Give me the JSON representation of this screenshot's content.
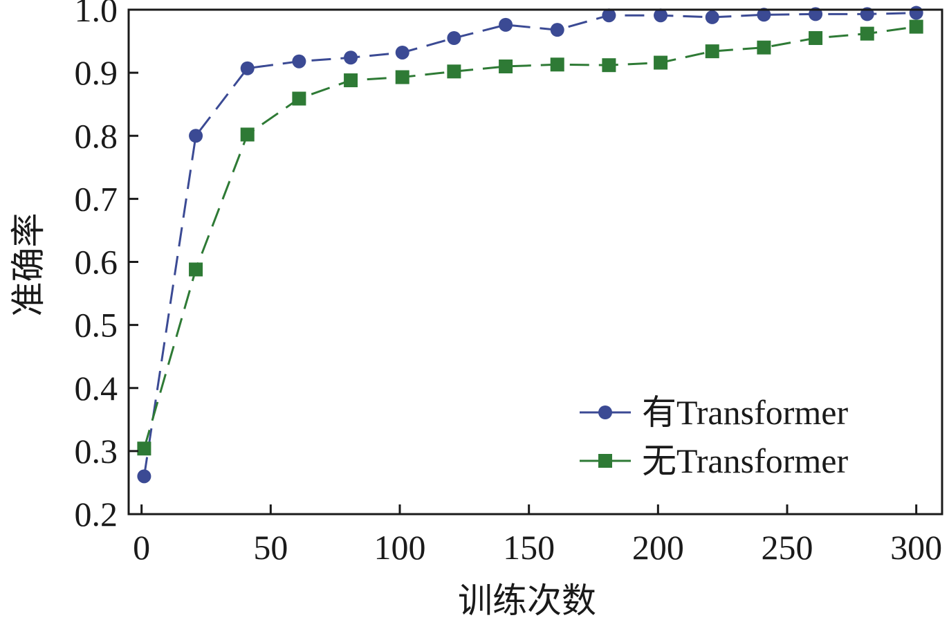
{
  "chart_data": {
    "type": "line",
    "title": "",
    "xlabel": "训练次数",
    "ylabel": "准确率",
    "xlim": [
      -5,
      310
    ],
    "ylim": [
      0.2,
      1.0
    ],
    "xticks": [
      0,
      50,
      100,
      150,
      200,
      250,
      300
    ],
    "yticks": [
      0.2,
      0.3,
      0.4,
      0.5,
      0.6,
      0.7,
      0.8,
      0.9,
      1.0
    ],
    "xtick_labels": [
      "0",
      "50",
      "100",
      "150",
      "200",
      "250",
      "300"
    ],
    "ytick_labels": [
      "0.2",
      "0.3",
      "0.4",
      "0.5",
      "0.6",
      "0.7",
      "0.8",
      "0.9",
      "1.0"
    ],
    "grid": false,
    "legend_position": "bottom-right",
    "x": [
      1,
      21,
      41,
      61,
      81,
      101,
      121,
      141,
      161,
      181,
      201,
      221,
      241,
      261,
      281,
      300
    ],
    "series": [
      {
        "name": "有Transformer",
        "color": "#3b4a94",
        "marker": "circle",
        "line_style": "dashed",
        "values": [
          0.26,
          0.8,
          0.907,
          0.918,
          0.924,
          0.932,
          0.955,
          0.976,
          0.968,
          0.991,
          0.991,
          0.988,
          0.992,
          0.993,
          0.993,
          0.995
        ]
      },
      {
        "name": "无Transformer",
        "color": "#2e7a35",
        "marker": "square",
        "line_style": "dashed",
        "values": [
          0.304,
          0.588,
          0.802,
          0.859,
          0.888,
          0.893,
          0.902,
          0.91,
          0.913,
          0.912,
          0.916,
          0.934,
          0.94,
          0.955,
          0.962,
          0.973
        ]
      }
    ]
  }
}
